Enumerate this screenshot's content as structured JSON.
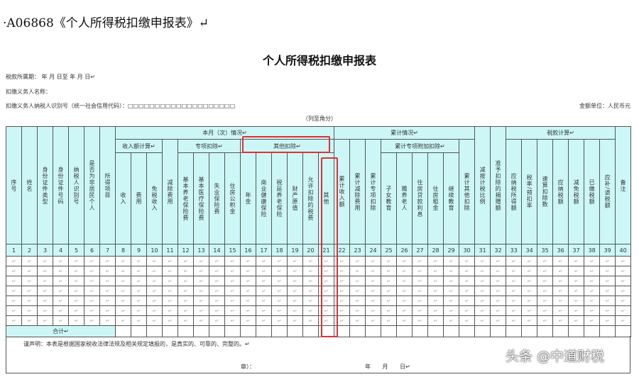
{
  "heading": "·A06868《个人所得税扣缴申报表》↵",
  "form_title": "个人所得税扣缴申报表",
  "fields": {
    "tax_period": "税款所属期：        年    月    日至        年    月    日↵",
    "withholder_name": "扣缴义务人名称：",
    "withholder_id": "扣缴义务人纳税人识别号（统一社会信用代码）：□□□□□□□□□□□□□□□□□□□□"
  },
  "unit": "金额单位：人民币元",
  "note": "（列至角分）",
  "header": {
    "g_current": "本月（次）情况↵",
    "g_cumulative": "累计情况↵",
    "g_tax_calc": "税款计算↵",
    "g_income_calc": "收入额计算↵",
    "g_special": "专项扣除↵",
    "g_other": "其他扣除↵",
    "g_cum_special_add": "累计专项附加扣除↵",
    "columns": [
      "序号",
      "姓名",
      "身份证件类型",
      "身份证件号码",
      "纳税人识别号",
      "是否为非居民个人",
      "所得项目",
      "收入",
      "费用",
      "免税收入",
      "减除费用",
      "基本养老保险费",
      "基本医疗保险费",
      "失业保险费",
      "住房公积金",
      "年金",
      "商业健康保险",
      "税延养老保险",
      "财产原值",
      "允许扣除的税费",
      "其他",
      "累计收入额",
      "累计减除费用",
      "累计专项扣除",
      "子女教育",
      "赡养老人",
      "住房贷款利息",
      "住房租金",
      "继续教育",
      "累计其他扣除",
      "减按计税比例",
      "准予扣除的捐赠额",
      "应纳税所得额",
      "税率/预扣率",
      "速算扣除数",
      "应纳税额",
      "减免税额",
      "已缴税额",
      "应补/退税额",
      "备注"
    ],
    "numbers": [
      "1",
      "2",
      "3",
      "4",
      "5",
      "6",
      "7",
      "8",
      "9",
      "10",
      "11",
      "12",
      "13",
      "14",
      "15",
      "16",
      "17",
      "18",
      "19",
      "20",
      "21",
      "22",
      "23",
      "24",
      "25",
      "26",
      "27",
      "28",
      "29",
      "30",
      "31",
      "32",
      "33",
      "34",
      "35",
      "36",
      "37",
      "38",
      "39",
      "40"
    ]
  },
  "total_label": "合计↵",
  "declaration": "谨声明：本表是根据国家税收法律法规及相关规定填报的，是真实的、可靠的、完整的。↵",
  "signature": "章）：",
  "date": "年 月 日↵",
  "watermark": "头条 @中道财税",
  "colors": {
    "header_bg": "#cdf7f7",
    "highlight": "#e53030"
  }
}
